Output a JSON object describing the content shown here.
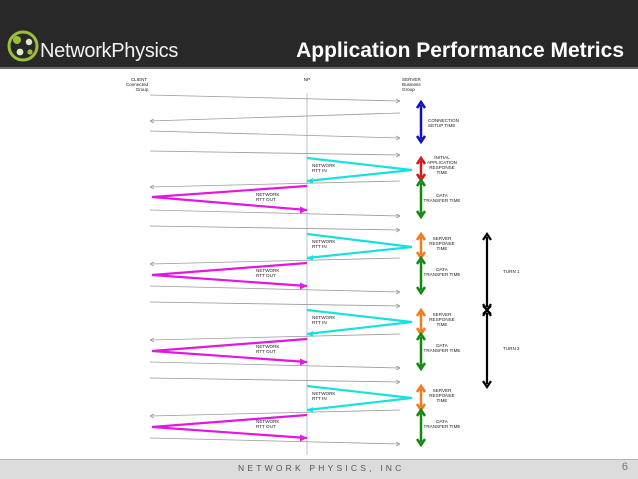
{
  "header": {
    "brand": "NetworkPhysics",
    "title": "Application Performance Metrics"
  },
  "columns": {
    "client": [
      "CLIENT",
      "Connected",
      "Group"
    ],
    "np": "NP",
    "server": [
      "SERVER",
      "Business",
      "Group"
    ]
  },
  "labels": {
    "connection_setup": [
      "CONNECTION",
      "SETUP TIME"
    ],
    "initial_response": [
      "INITIAL",
      "APPLICATION",
      "RESPONSE",
      "TIME"
    ],
    "data_transfer": [
      "DATA",
      "TRANSFER TIME"
    ],
    "server_response": [
      "SERVER",
      "RESPONSE",
      "TIME"
    ],
    "network_rtt_in": [
      "NETWORK",
      "RTT IN"
    ],
    "network_rtt_out": [
      "NETWORK",
      "RTT OUT"
    ],
    "turn_1": "TURN 1",
    "turn_2": "TURN 2"
  },
  "colors": {
    "connection": "#1010c0",
    "initial_response": "#d81818",
    "server_response": "#f07a1c",
    "data_transfer": "#128a12",
    "rtt_in": "#19e0e0",
    "rtt_out": "#e018e0",
    "turn": "#000000"
  },
  "footer": {
    "company": "NETWORK PHYSICS, INC",
    "page": "6"
  }
}
